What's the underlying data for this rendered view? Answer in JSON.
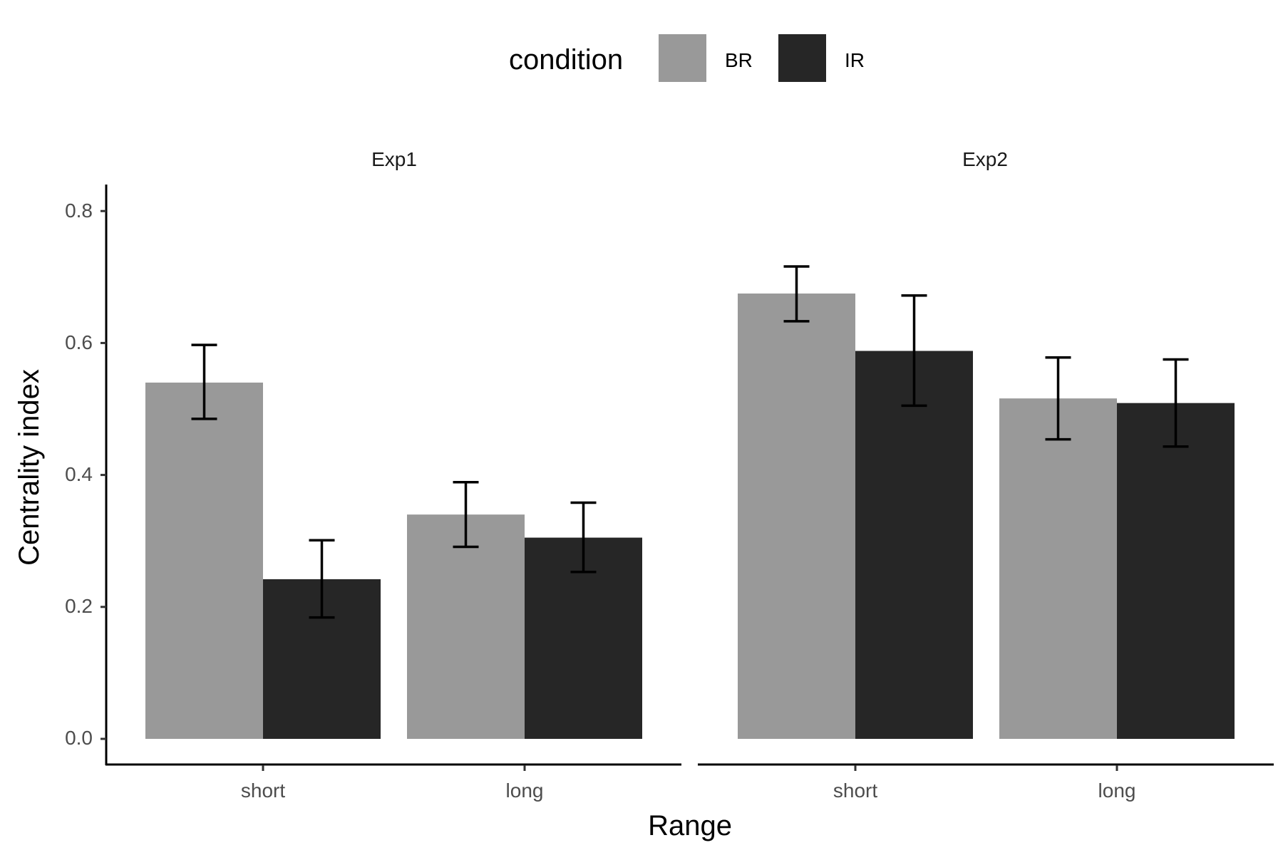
{
  "chart_data": {
    "type": "bar",
    "xlabel": "Range",
    "ylabel": "Centrality index",
    "ylim": [
      0,
      0.8
    ],
    "yticks": [
      "0.0",
      "0.2",
      "0.4",
      "0.6",
      "0.8"
    ],
    "facets": [
      "Exp1",
      "Exp2"
    ],
    "categories": [
      "short",
      "long"
    ],
    "legend": {
      "title": "condition",
      "position": "top",
      "entries": [
        {
          "label": "BR",
          "color": "#999999"
        },
        {
          "label": "IR",
          "color": "#262626"
        }
      ]
    },
    "grid": false,
    "error_bars": true,
    "series": [
      {
        "name": "BR",
        "color": "#999999",
        "values": {
          "Exp1": [
            0.54,
            0.34
          ],
          "Exp2": [
            0.675,
            0.516
          ]
        },
        "err_low": {
          "Exp1": [
            0.485,
            0.291
          ],
          "Exp2": [
            0.633,
            0.454
          ]
        },
        "err_high": {
          "Exp1": [
            0.597,
            0.389
          ],
          "Exp2": [
            0.716,
            0.578
          ]
        }
      },
      {
        "name": "IR",
        "color": "#262626",
        "values": {
          "Exp1": [
            0.242,
            0.305
          ],
          "Exp2": [
            0.588,
            0.509
          ]
        },
        "err_low": {
          "Exp1": [
            0.184,
            0.253
          ],
          "Exp2": [
            0.505,
            0.443
          ]
        },
        "err_high": {
          "Exp1": [
            0.301,
            0.358
          ],
          "Exp2": [
            0.672,
            0.575
          ]
        }
      }
    ]
  }
}
